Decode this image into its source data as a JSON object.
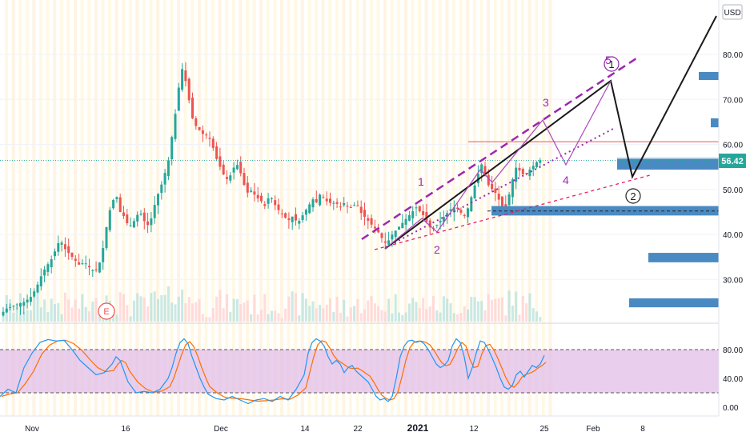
{
  "currency": "USD",
  "last_price": "56.42",
  "earnings_marker": "E",
  "wave_labels": [
    "1",
    "2",
    "3",
    "4",
    "5"
  ],
  "circle_labels": [
    "1",
    "2"
  ],
  "price_axis": {
    "ticks": [
      "80.00",
      "70.00",
      "60.00",
      "50.00",
      "40.00",
      "30.00"
    ]
  },
  "stoch_axis": {
    "ticks": [
      "80.00",
      "40.00",
      "0.00"
    ]
  },
  "time_axis": {
    "ticks": [
      "Nov",
      "16",
      "Dec",
      "14",
      "22",
      "2021",
      "12",
      "25",
      "Feb",
      "8"
    ]
  },
  "colors": {
    "up": "#26a69a",
    "down": "#ef5350",
    "wave": "#9c27b0",
    "stoch_k": "#2196f3",
    "stoch_d": "#ff6d00",
    "stoch_band": "#e1bee7",
    "zone": "#4a8ac2",
    "last_price": "#26a69a"
  },
  "chart_data": {
    "type": "candlestick",
    "price_range": [
      22,
      88
    ],
    "stoch_range": [
      -10,
      100
    ],
    "price_path": [
      [
        0,
        22
      ],
      [
        8,
        23.5
      ],
      [
        15,
        24
      ],
      [
        22,
        24.5
      ],
      [
        30,
        25
      ],
      [
        38,
        26
      ],
      [
        45,
        28
      ],
      [
        52,
        31
      ],
      [
        58,
        33
      ],
      [
        63,
        34
      ],
      [
        68,
        36
      ],
      [
        75,
        39
      ],
      [
        80,
        37
      ],
      [
        85,
        36
      ],
      [
        90,
        35
      ],
      [
        95,
        34
      ],
      [
        100,
        33
      ],
      [
        105,
        34
      ],
      [
        110,
        33
      ],
      [
        115,
        32
      ],
      [
        120,
        32
      ],
      [
        125,
        34
      ],
      [
        130,
        38
      ],
      [
        135,
        44
      ],
      [
        140,
        47
      ],
      [
        145,
        49
      ],
      [
        150,
        45
      ],
      [
        155,
        44
      ],
      [
        160,
        42
      ],
      [
        165,
        42
      ],
      [
        170,
        44
      ],
      [
        175,
        45
      ],
      [
        180,
        43
      ],
      [
        185,
        42
      ],
      [
        190,
        44
      ],
      [
        195,
        48
      ],
      [
        200,
        50
      ],
      [
        205,
        53
      ],
      [
        210,
        56
      ],
      [
        215,
        62
      ],
      [
        220,
        68
      ],
      [
        225,
        75
      ],
      [
        228,
        77
      ],
      [
        232,
        74
      ],
      [
        236,
        70
      ],
      [
        240,
        66
      ],
      [
        245,
        64
      ],
      [
        250,
        63
      ],
      [
        255,
        62
      ],
      [
        260,
        62
      ],
      [
        265,
        60
      ],
      [
        270,
        57
      ],
      [
        275,
        55
      ],
      [
        280,
        53
      ],
      [
        285,
        52
      ],
      [
        290,
        54
      ],
      [
        295,
        56
      ],
      [
        300,
        54
      ],
      [
        305,
        51
      ],
      [
        310,
        49
      ],
      [
        315,
        50
      ],
      [
        320,
        48
      ],
      [
        325,
        48
      ],
      [
        330,
        46
      ],
      [
        335,
        48
      ],
      [
        340,
        48
      ],
      [
        345,
        46
      ],
      [
        350,
        45
      ],
      [
        355,
        44
      ],
      [
        360,
        43
      ],
      [
        365,
        44
      ],
      [
        370,
        43
      ],
      [
        375,
        43
      ],
      [
        380,
        45
      ],
      [
        385,
        46
      ],
      [
        390,
        48
      ],
      [
        395,
        47
      ],
      [
        400,
        49
      ],
      [
        405,
        48
      ],
      [
        410,
        47
      ],
      [
        415,
        47
      ],
      [
        420,
        47
      ],
      [
        425,
        46
      ],
      [
        430,
        47
      ],
      [
        435,
        46
      ],
      [
        440,
        46
      ],
      [
        445,
        47
      ],
      [
        450,
        45
      ],
      [
        455,
        44
      ],
      [
        460,
        43
      ],
      [
        465,
        42
      ],
      [
        470,
        41
      ],
      [
        475,
        40
      ],
      [
        480,
        38
      ],
      [
        485,
        38.5
      ],
      [
        490,
        40
      ],
      [
        495,
        41
      ],
      [
        500,
        42
      ],
      [
        505,
        43
      ],
      [
        510,
        44
      ],
      [
        515,
        45
      ],
      [
        520,
        46
      ],
      [
        525,
        45
      ],
      [
        530,
        44
      ],
      [
        535,
        42
      ],
      [
        540,
        41
      ],
      [
        545,
        42
      ],
      [
        550,
        43
      ],
      [
        555,
        44
      ],
      [
        560,
        45
      ],
      [
        565,
        46
      ],
      [
        570,
        46
      ],
      [
        575,
        45
      ],
      [
        580,
        44
      ],
      [
        585,
        46
      ],
      [
        590,
        49
      ],
      [
        595,
        52
      ],
      [
        600,
        55
      ],
      [
        603,
        56
      ],
      [
        606,
        53
      ],
      [
        610,
        51
      ],
      [
        615,
        50
      ],
      [
        620,
        49
      ],
      [
        625,
        47
      ],
      [
        630,
        45
      ],
      [
        635,
        48
      ],
      [
        640,
        52
      ],
      [
        645,
        55
      ],
      [
        650,
        54
      ],
      [
        655,
        53
      ],
      [
        660,
        54
      ],
      [
        665,
        55
      ],
      [
        670,
        56
      ],
      [
        675,
        56.5
      ],
      [
        678,
        56.4
      ]
    ],
    "stoch_k": [
      [
        0,
        15
      ],
      [
        10,
        25
      ],
      [
        20,
        20
      ],
      [
        30,
        55
      ],
      [
        40,
        75
      ],
      [
        50,
        90
      ],
      [
        60,
        94
      ],
      [
        70,
        92
      ],
      [
        80,
        93
      ],
      [
        90,
        80
      ],
      [
        100,
        65
      ],
      [
        110,
        55
      ],
      [
        120,
        45
      ],
      [
        130,
        48
      ],
      [
        140,
        60
      ],
      [
        145,
        70
      ],
      [
        150,
        65
      ],
      [
        155,
        50
      ],
      [
        160,
        35
      ],
      [
        170,
        20
      ],
      [
        180,
        22
      ],
      [
        190,
        20
      ],
      [
        200,
        25
      ],
      [
        210,
        40
      ],
      [
        215,
        55
      ],
      [
        220,
        75
      ],
      [
        225,
        90
      ],
      [
        230,
        95
      ],
      [
        235,
        88
      ],
      [
        240,
        70
      ],
      [
        245,
        55
      ],
      [
        250,
        40
      ],
      [
        255,
        28
      ],
      [
        260,
        18
      ],
      [
        270,
        12
      ],
      [
        280,
        10
      ],
      [
        290,
        15
      ],
      [
        300,
        10
      ],
      [
        310,
        5
      ],
      [
        320,
        10
      ],
      [
        330,
        12
      ],
      [
        340,
        8
      ],
      [
        350,
        15
      ],
      [
        360,
        10
      ],
      [
        370,
        25
      ],
      [
        380,
        45
      ],
      [
        385,
        75
      ],
      [
        390,
        90
      ],
      [
        395,
        95
      ],
      [
        400,
        92
      ],
      [
        405,
        85
      ],
      [
        410,
        70
      ],
      [
        415,
        60
      ],
      [
        420,
        65
      ],
      [
        425,
        60
      ],
      [
        430,
        48
      ],
      [
        435,
        55
      ],
      [
        440,
        58
      ],
      [
        445,
        50
      ],
      [
        450,
        45
      ],
      [
        460,
        35
      ],
      [
        465,
        25
      ],
      [
        470,
        15
      ],
      [
        475,
        10
      ],
      [
        480,
        12
      ],
      [
        485,
        8
      ],
      [
        490,
        15
      ],
      [
        495,
        40
      ],
      [
        500,
        70
      ],
      [
        505,
        85
      ],
      [
        510,
        92
      ],
      [
        515,
        93
      ],
      [
        520,
        90
      ],
      [
        525,
        92
      ],
      [
        530,
        88
      ],
      [
        535,
        80
      ],
      [
        540,
        70
      ],
      [
        545,
        60
      ],
      [
        550,
        55
      ],
      [
        555,
        58
      ],
      [
        560,
        65
      ],
      [
        565,
        85
      ],
      [
        570,
        95
      ],
      [
        575,
        90
      ],
      [
        580,
        70
      ],
      [
        585,
        40
      ],
      [
        590,
        55
      ],
      [
        595,
        75
      ],
      [
        600,
        92
      ],
      [
        605,
        90
      ],
      [
        610,
        80
      ],
      [
        615,
        68
      ],
      [
        620,
        55
      ],
      [
        625,
        40
      ],
      [
        630,
        28
      ],
      [
        635,
        25
      ],
      [
        640,
        30
      ],
      [
        645,
        45
      ],
      [
        650,
        50
      ],
      [
        655,
        42
      ],
      [
        660,
        50
      ],
      [
        665,
        58
      ],
      [
        670,
        55
      ],
      [
        675,
        60
      ],
      [
        680,
        72
      ]
    ],
    "zones": [
      {
        "price_low": 54.4,
        "price_high": 56.8
      },
      {
        "price_low": 44.2,
        "price_high": 46.3
      },
      {
        "price_low": 74.3,
        "price_high": 76.1
      },
      {
        "price_low": 63.8,
        "price_high": 65.8
      },
      {
        "price_low": 33.8,
        "price_high": 35.9
      },
      {
        "price_low": 23.8,
        "price_high": 25.8
      }
    ],
    "horizontal_levels": [
      {
        "price": 60.6,
        "style": "solid-red"
      },
      {
        "price": 56.42,
        "style": "dotted-green"
      },
      {
        "price": 45.2,
        "style": "dashed-black"
      }
    ]
  }
}
